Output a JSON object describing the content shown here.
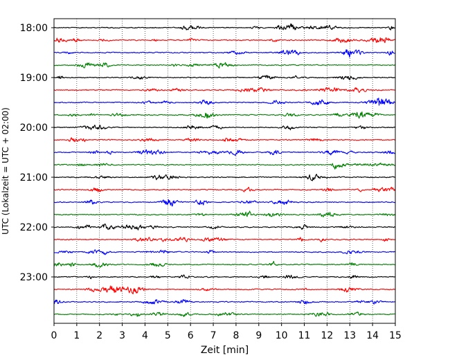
{
  "chart_data": {
    "type": "line",
    "title": "",
    "xlabel": "Zeit  [min]",
    "ylabel": "UTC (Lokalzeit = UTC + 02:00)",
    "xlim": [
      0,
      15
    ],
    "x_ticks": [
      0,
      1,
      2,
      3,
      4,
      5,
      6,
      7,
      8,
      9,
      10,
      11,
      12,
      13,
      14,
      15
    ],
    "y_tick_labels": [
      "18:00",
      "19:00",
      "20:00",
      "21:00",
      "22:00",
      "23:00"
    ],
    "vertical_grid": true,
    "grid_style": "dotted",
    "trace_colors": [
      "#000000",
      "#ff0000",
      "#0000ff",
      "#008000"
    ],
    "trace_minutes": 15,
    "traces": [
      "18:00",
      "18:15",
      "18:30",
      "18:45",
      "19:00",
      "19:15",
      "19:30",
      "19:45",
      "20:00",
      "20:15",
      "20:30",
      "20:45",
      "21:00",
      "21:15",
      "21:30",
      "21:45",
      "22:00",
      "22:15",
      "22:30",
      "22:45",
      "23:00",
      "23:15",
      "23:30",
      "23:45"
    ]
  }
}
